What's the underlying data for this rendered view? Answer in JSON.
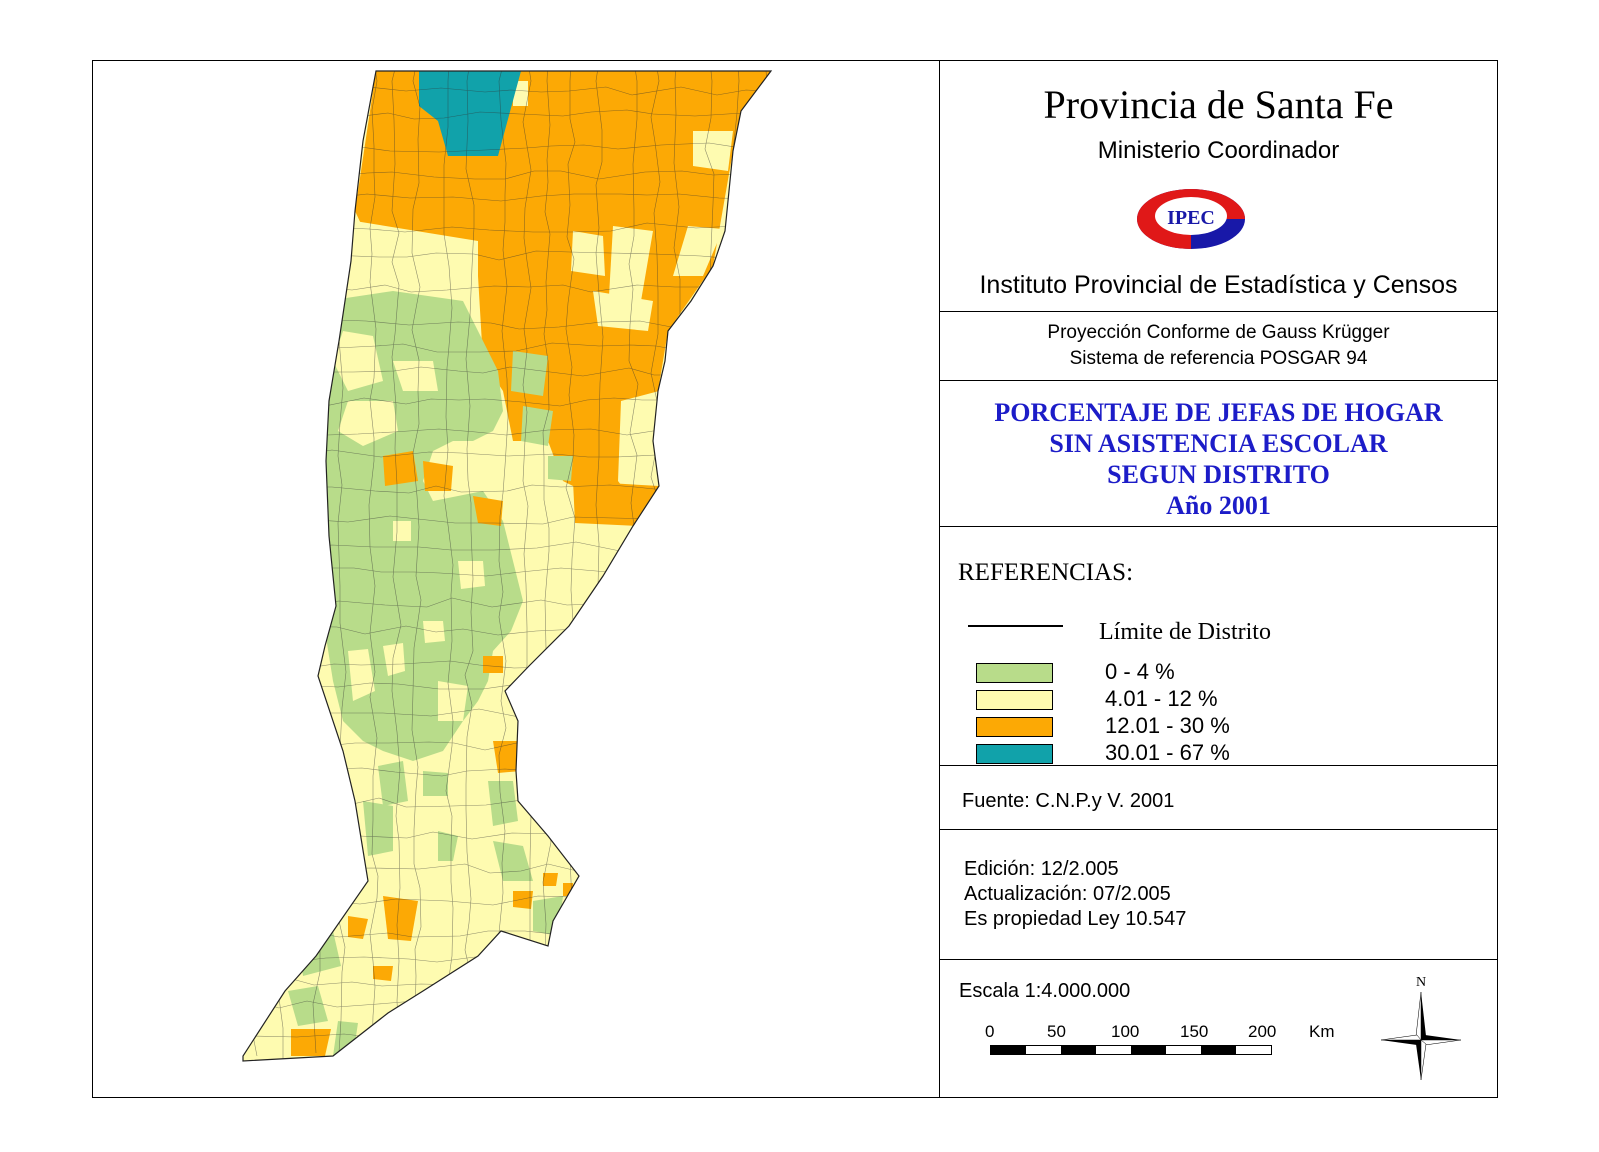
{
  "header": {
    "province": "Provincia de Santa Fe",
    "ministry": "Ministerio Coordinador",
    "logo_text": "IPEC",
    "institute": "Instituto Provincial de Estadística y Censos"
  },
  "projection": {
    "line1": "Proyección Conforme de Gauss Krügger",
    "line2": "Sistema de referencia POSGAR 94"
  },
  "title": {
    "line1": "PORCENTAJE DE JEFAS DE HOGAR",
    "line2": "SIN ASISTENCIA ESCOLAR",
    "line3": "SEGUN DISTRITO",
    "line4": "Año 2001"
  },
  "legend": {
    "heading": "REFERENCIAS:",
    "boundary_label": "Límite de Distrito",
    "classes": [
      {
        "label": "0 - 4 %",
        "color": "#b8dc8a"
      },
      {
        "label": "4.01 -  12 %",
        "color": "#fefbb0"
      },
      {
        "label": "12.01 - 30 %",
        "color": "#fca905"
      },
      {
        "label": "30.01 - 67 %",
        "color": "#11a2aa"
      }
    ]
  },
  "source": "Fuente:  C.N.P.y V. 2001",
  "edition": {
    "line1": "Edición:  12/2.005",
    "line2": "Actualización:  07/2.005",
    "line3": "Es propiedad Ley 10.547"
  },
  "scale": {
    "label": "Escala 1:4.000.000",
    "ticks": [
      "0",
      "50",
      "100",
      "150",
      "200"
    ],
    "unit": "Km"
  },
  "compass": {
    "north": "N"
  },
  "colors": {
    "green": "#b8dc8a",
    "yellow": "#fefbb0",
    "orange": "#fca905",
    "teal": "#11a2aa",
    "title_blue": "#1c1cc8",
    "logo_red": "#e01818",
    "logo_blue": "#1818a8"
  }
}
